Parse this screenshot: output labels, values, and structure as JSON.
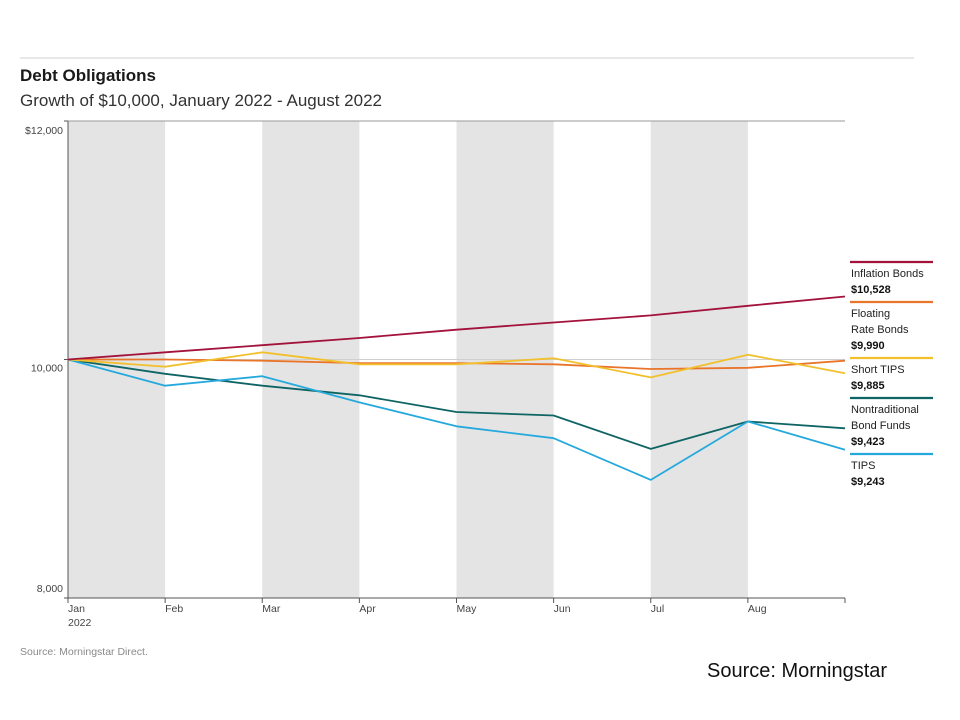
{
  "chart_data": {
    "type": "line",
    "title": "Debt Obligations",
    "subtitle": "Growth of $10,000, January 2022 - August 2022",
    "source_note": "Source: Morningstar Direct.",
    "y_ticks": [
      {
        "value": 12000,
        "label": "$12,000"
      },
      {
        "value": 10000,
        "label": "10,000"
      },
      {
        "value": 8000,
        "label": "8,000"
      }
    ],
    "ylim": [
      8000,
      12000
    ],
    "months": [
      "Jan",
      "Feb",
      "Mar",
      "Apr",
      "May",
      "Jun",
      "Jul",
      "Aug"
    ],
    "first_month_year": "2022",
    "x": [
      0,
      1,
      2,
      3,
      4,
      5,
      6,
      7,
      8
    ],
    "shaded_months": [
      0,
      2,
      4,
      6
    ],
    "series": [
      {
        "name": "Inflation Bonds",
        "value_label": "$10,528",
        "color": "#a3123a",
        "values": [
          10000,
          10060,
          10120,
          10180,
          10250,
          10310,
          10370,
          10450,
          10528
        ]
      },
      {
        "name": "Floating Rate Bonds",
        "value_label": "$9,990",
        "color": "#e9752b",
        "values": [
          10000,
          10000,
          9990,
          9970,
          9970,
          9960,
          9920,
          9930,
          9990
        ]
      },
      {
        "name": "Short TIPS",
        "value_label": "$9,885",
        "color": "#f2c02c",
        "values": [
          10000,
          9940,
          10060,
          9960,
          9960,
          10010,
          9850,
          10040,
          9885
        ]
      },
      {
        "name": "Nontraditional Bond Funds",
        "value_label": "$9,423",
        "color": "#0f6464",
        "values": [
          10000,
          9880,
          9780,
          9700,
          9560,
          9530,
          9250,
          9480,
          9423
        ]
      },
      {
        "name": "TIPS",
        "value_label": "$9,243",
        "color": "#25a9dd",
        "values": [
          10000,
          9780,
          9860,
          9640,
          9440,
          9340,
          8990,
          9480,
          9243
        ]
      }
    ],
    "legend_lines": [
      {
        "name_lines": [
          "Inflation Bonds"
        ],
        "value": "$10,528",
        "color": "#a3123a"
      },
      {
        "name_lines": [
          "Floating",
          "Rate Bonds"
        ],
        "value": "$9,990",
        "color": "#e9752b"
      },
      {
        "name_lines": [
          "Short TIPS"
        ],
        "value": "$9,885",
        "color": "#f2c02c"
      },
      {
        "name_lines": [
          "Nontraditional",
          "Bond Funds"
        ],
        "value": "$9,423",
        "color": "#0f6464"
      },
      {
        "name_lines": [
          "TIPS"
        ],
        "value": "$9,243",
        "color": "#25a9dd"
      }
    ],
    "legend_placement": "right",
    "grid": false
  },
  "footer": {
    "source": "Source: Morningstar"
  }
}
